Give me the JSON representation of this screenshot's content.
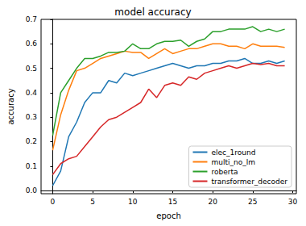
{
  "chart_data": {
    "type": "line",
    "title": "model accuracy",
    "x_label": "epoch",
    "y_label": "accuracy",
    "x": [
      0,
      1,
      2,
      3,
      4,
      5,
      6,
      7,
      8,
      9,
      10,
      11,
      12,
      13,
      14,
      15,
      16,
      17,
      18,
      19,
      20,
      21,
      22,
      23,
      24,
      25,
      26,
      27,
      28,
      29
    ],
    "series": [
      {
        "name": "elec_1round",
        "color": "#1f77b4",
        "values": [
          0.02,
          0.08,
          0.22,
          0.28,
          0.36,
          0.4,
          0.4,
          0.45,
          0.44,
          0.48,
          0.47,
          0.48,
          0.49,
          0.5,
          0.51,
          0.52,
          0.51,
          0.5,
          0.51,
          0.51,
          0.52,
          0.52,
          0.53,
          0.53,
          0.54,
          0.52,
          0.52,
          0.53,
          0.52,
          0.53
        ]
      },
      {
        "name": "multi_no_lm",
        "color": "#ff7f0e",
        "values": [
          0.165,
          0.31,
          0.41,
          0.49,
          0.5,
          0.52,
          0.54,
          0.55,
          0.56,
          0.57,
          0.565,
          0.565,
          0.54,
          0.56,
          0.58,
          0.56,
          0.57,
          0.58,
          0.58,
          0.59,
          0.6,
          0.6,
          0.59,
          0.59,
          0.58,
          0.6,
          0.59,
          0.59,
          0.59,
          0.585
        ]
      },
      {
        "name": "roberta",
        "color": "#2ca02c",
        "values": [
          0.225,
          0.4,
          0.45,
          0.5,
          0.54,
          0.54,
          0.55,
          0.565,
          0.565,
          0.57,
          0.6,
          0.58,
          0.58,
          0.6,
          0.61,
          0.61,
          0.615,
          0.59,
          0.61,
          0.62,
          0.65,
          0.65,
          0.66,
          0.66,
          0.66,
          0.67,
          0.65,
          0.66,
          0.65,
          0.66
        ]
      },
      {
        "name": "transformer_decoder",
        "color": "#d62728",
        "values": [
          0.065,
          0.11,
          0.13,
          0.14,
          0.18,
          0.22,
          0.26,
          0.29,
          0.3,
          0.32,
          0.34,
          0.36,
          0.415,
          0.38,
          0.43,
          0.44,
          0.43,
          0.465,
          0.455,
          0.48,
          0.49,
          0.5,
          0.51,
          0.5,
          0.51,
          0.52,
          0.515,
          0.52,
          0.51,
          0.51
        ]
      }
    ],
    "xlim": [
      -1.45,
      30.45
    ],
    "xticks": [
      0,
      5,
      10,
      15,
      20,
      25,
      30
    ],
    "ylim": [
      -0.013,
      0.7
    ],
    "yticks": [
      {
        "value": 0,
        "label": "0.0"
      },
      0.1,
      0.2,
      0.3,
      0.4,
      0.5,
      0.6,
      0.7
    ],
    "grid": false,
    "legend": "lower right"
  }
}
